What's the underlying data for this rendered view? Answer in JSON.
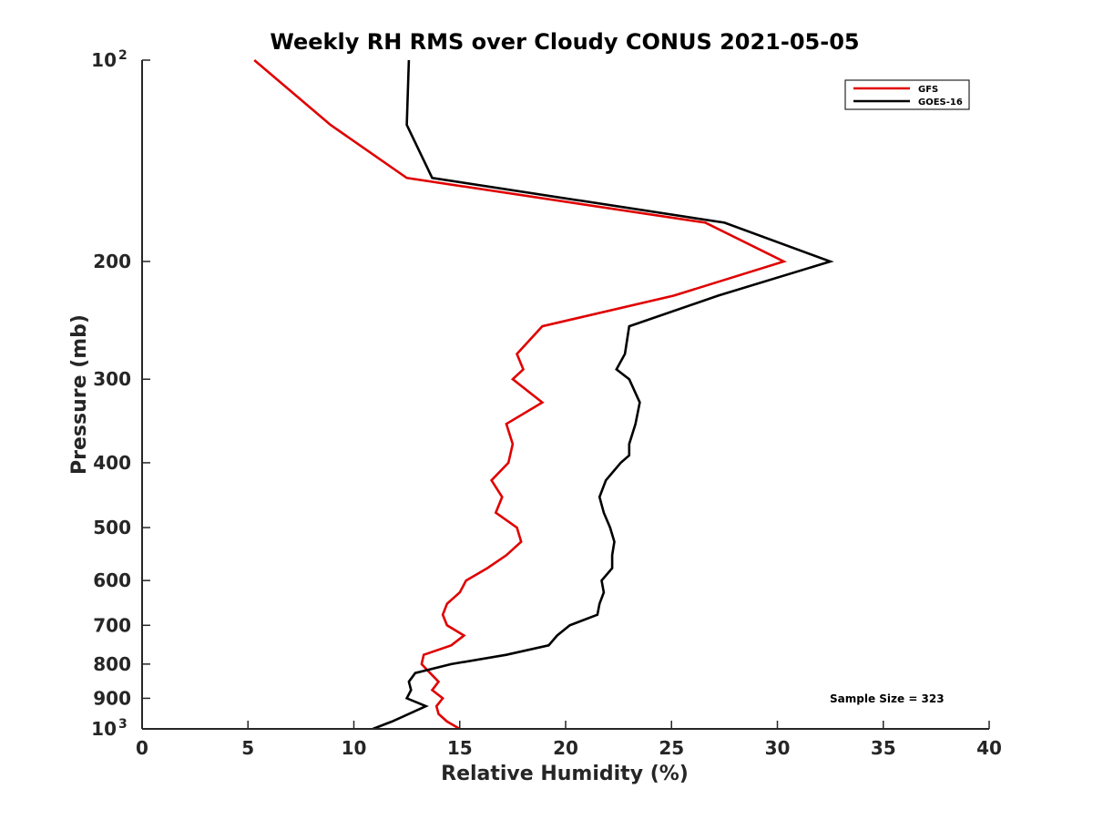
{
  "chart_data": {
    "type": "line",
    "title": "Weekly RH RMS over Cloudy CONUS 2021-05-05",
    "xlabel": "Relative Humidity (%)",
    "ylabel": "Pressure (mb)",
    "xlim": [
      0,
      40
    ],
    "ylim": [
      100,
      1000
    ],
    "y_scale": "log",
    "y_reversed": true,
    "x_ticks": [
      0,
      5,
      10,
      15,
      20,
      25,
      30,
      35,
      40
    ],
    "y_ticks": [
      {
        "value": 100,
        "label": "10",
        "sup": "2"
      },
      {
        "value": 200,
        "label": "200",
        "sup": ""
      },
      {
        "value": 300,
        "label": "300",
        "sup": ""
      },
      {
        "value": 400,
        "label": "400",
        "sup": ""
      },
      {
        "value": 500,
        "label": "500",
        "sup": ""
      },
      {
        "value": 600,
        "label": "600",
        "sup": ""
      },
      {
        "value": 700,
        "label": "700",
        "sup": ""
      },
      {
        "value": 800,
        "label": "800",
        "sup": ""
      },
      {
        "value": 900,
        "label": "900",
        "sup": ""
      },
      {
        "value": 1000,
        "label": "10",
        "sup": "3"
      }
    ],
    "legend_position": "top-right",
    "annotation": "Sample Size = 323",
    "series": [
      {
        "name": "GFS",
        "color": "#e00000",
        "points": [
          [
            5.3,
            100
          ],
          [
            8.9,
            125
          ],
          [
            12.5,
            150
          ],
          [
            26.6,
            175
          ],
          [
            30.3,
            200
          ],
          [
            25.1,
            225
          ],
          [
            18.9,
            250
          ],
          [
            17.7,
            275
          ],
          [
            18.0,
            290
          ],
          [
            17.5,
            300
          ],
          [
            18.9,
            325
          ],
          [
            17.2,
            350
          ],
          [
            17.5,
            375
          ],
          [
            17.3,
            400
          ],
          [
            16.5,
            425
          ],
          [
            17.0,
            450
          ],
          [
            16.7,
            475
          ],
          [
            17.7,
            500
          ],
          [
            17.9,
            525
          ],
          [
            17.2,
            550
          ],
          [
            16.3,
            575
          ],
          [
            15.3,
            600
          ],
          [
            15.0,
            625
          ],
          [
            14.4,
            650
          ],
          [
            14.2,
            675
          ],
          [
            14.4,
            700
          ],
          [
            15.2,
            725
          ],
          [
            14.6,
            750
          ],
          [
            13.3,
            775
          ],
          [
            13.2,
            800
          ],
          [
            13.6,
            825
          ],
          [
            14.0,
            850
          ],
          [
            13.7,
            875
          ],
          [
            14.2,
            900
          ],
          [
            13.9,
            925
          ],
          [
            14.0,
            950
          ],
          [
            14.4,
            975
          ],
          [
            15.0,
            1000
          ]
        ]
      },
      {
        "name": "GOES-16",
        "color": "#000000",
        "points": [
          [
            12.6,
            100
          ],
          [
            12.5,
            125
          ],
          [
            13.7,
            150
          ],
          [
            27.5,
            175
          ],
          [
            32.5,
            200
          ],
          [
            27.2,
            225
          ],
          [
            23.0,
            250
          ],
          [
            22.8,
            275
          ],
          [
            22.4,
            290
          ],
          [
            23.0,
            300
          ],
          [
            23.5,
            325
          ],
          [
            23.3,
            350
          ],
          [
            23.0,
            375
          ],
          [
            23.0,
            390
          ],
          [
            22.6,
            400
          ],
          [
            21.9,
            425
          ],
          [
            21.6,
            450
          ],
          [
            21.8,
            475
          ],
          [
            22.1,
            500
          ],
          [
            22.3,
            525
          ],
          [
            22.2,
            550
          ],
          [
            22.2,
            575
          ],
          [
            21.7,
            600
          ],
          [
            21.8,
            625
          ],
          [
            21.6,
            650
          ],
          [
            21.5,
            675
          ],
          [
            20.2,
            700
          ],
          [
            19.6,
            725
          ],
          [
            19.2,
            750
          ],
          [
            17.2,
            775
          ],
          [
            14.6,
            800
          ],
          [
            12.9,
            825
          ],
          [
            12.6,
            850
          ],
          [
            12.7,
            875
          ],
          [
            12.5,
            900
          ],
          [
            13.4,
            925
          ],
          [
            12.6,
            950
          ],
          [
            11.8,
            975
          ],
          [
            10.9,
            1000
          ]
        ]
      }
    ]
  }
}
